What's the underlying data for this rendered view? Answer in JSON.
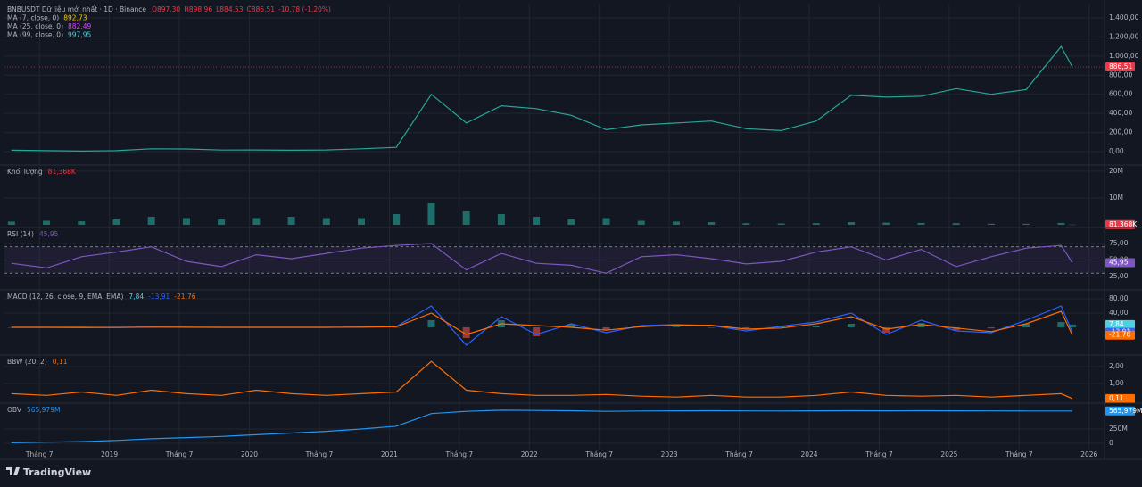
{
  "chart_data": {
    "type": "financial",
    "x": [
      2018.3,
      2018.55,
      2018.8,
      2019.05,
      2019.3,
      2019.55,
      2019.8,
      2020.05,
      2020.3,
      2020.55,
      2020.8,
      2021.05,
      2021.3,
      2021.55,
      2021.8,
      2022.05,
      2022.3,
      2022.55,
      2022.8,
      2023.05,
      2023.3,
      2023.55,
      2023.8,
      2024.05,
      2024.3,
      2024.55,
      2024.8,
      2025.05,
      2025.3,
      2025.55,
      2025.8,
      2025.88
    ],
    "xlim": [
      2018.25,
      2026.11
    ],
    "xticks": [
      {
        "value": 2018.5,
        "label": "Tháng 7"
      },
      2019,
      {
        "value": 2019.5,
        "label": "Tháng 7"
      },
      2020,
      {
        "value": 2020.5,
        "label": "Tháng 7"
      },
      2021,
      {
        "value": 2021.5,
        "label": "Tháng 7"
      },
      2022,
      {
        "value": 2022.5,
        "label": "Tháng 7"
      },
      2023,
      {
        "value": 2023.5,
        "label": "Tháng 7"
      },
      2024,
      {
        "value": 2024.5,
        "label": "Tháng 7"
      },
      2025,
      {
        "value": 2025.5,
        "label": "Tháng 7"
      },
      2026
    ],
    "grid": true,
    "brand": "TradingView",
    "panes": [
      {
        "type": "line",
        "title": "BNBUSDT Dữ liệu mới nhất · 1D · Binance",
        "ohlc": [
          "O897,30",
          "H898,96",
          "L884,53",
          "C886,51",
          "-10,78 (-1,20%)"
        ],
        "ohlc_color": "#f23645",
        "legend": [
          {
            "name": "MA (7, close, 0)",
            "value": "892,73",
            "color": "#f7c600"
          },
          {
            "name": "MA (25, close, 0)",
            "value": "882,49",
            "color": "#e040fb"
          },
          {
            "name": "MA (99, close, 0)",
            "value": "997,95",
            "color": "#4dd0e1"
          }
        ],
        "price_line": true,
        "series": [
          {
            "color": "#26a69a",
            "last_color": "#f23645",
            "last": {
              "value": 886.51,
              "label": "886,51"
            },
            "values": [
              15,
              10,
              6,
              10,
              30,
              28,
              17,
              18,
              15,
              18,
              30,
              45,
              600,
              300,
              480,
              450,
              380,
              230,
              280,
              300,
              320,
              240,
              220,
              320,
              590,
              570,
              580,
              660,
              600,
              650,
              1100,
              886.51
            ]
          }
        ],
        "ylim": [
          -140,
          1540
        ],
        "yticks": [
          {
            "value": 0,
            "label": "0,00"
          },
          {
            "value": 200,
            "label": "200,00"
          },
          {
            "value": 400,
            "label": "400,00"
          },
          {
            "value": 600,
            "label": "600,00"
          },
          {
            "value": 800,
            "label": "800,00"
          },
          {
            "value": 1000,
            "label": "1.000,00"
          },
          {
            "value": 1200,
            "label": "1.200,00"
          },
          {
            "value": 1400,
            "label": "1.400,00"
          }
        ]
      },
      {
        "type": "bar",
        "title": "Khối lượng",
        "series": [
          {
            "color": "#26a69a",
            "last_color": "#f23645",
            "last": {
              "value": 81368,
              "label": "81,368K"
            },
            "values": [
              1200000,
              1500000,
              1300000,
              2000000,
              3000000,
              2500000,
              2000000,
              2500000,
              3000000,
              2500000,
              2500000,
              4000000,
              8000000,
              5000000,
              4000000,
              3000000,
              2000000,
              2500000,
              1500000,
              1200000,
              1000000,
              600000,
              500000,
              600000,
              1000000,
              800000,
              700000,
              600000,
              400000,
              400000,
              700000,
              81368
            ]
          }
        ],
        "ylim": [
          -1000000,
          22300000
        ],
        "yticks": [
          {
            "value": 10000000,
            "label": "10M"
          },
          {
            "value": 20000000,
            "label": "20M"
          }
        ]
      },
      {
        "type": "line",
        "title": "RSI (14)",
        "band": [
          30,
          70
        ],
        "series": [
          {
            "color": "#7e57c2",
            "last": {
              "value": 45.95,
              "label": "45,95"
            },
            "values": [
              45,
              38,
              55,
              62,
              70,
              48,
              40,
              58,
              52,
              60,
              68,
              72,
              75,
              35,
              60,
              45,
              42,
              30,
              55,
              58,
              52,
              44,
              48,
              62,
              70,
              50,
              66,
              40,
              55,
              68,
              72,
              45.95
            ]
          }
        ],
        "ylim": [
          4.7,
          99.3
        ],
        "yticks": [
          {
            "value": 25,
            "label": "25,00"
          },
          {
            "value": 50,
            "label": "50,00"
          },
          {
            "value": 75,
            "label": "75,00"
          }
        ]
      },
      {
        "type": "line",
        "title": "MACD (12, 26, close, 9, EMA, EMA)",
        "series": [
          {
            "type": "bar",
            "color": "#26a69a",
            "neg_color": "#ef5350",
            "last_color": "#4dd0e1",
            "last": {
              "value": 7.84,
              "label": "7,84"
            },
            "values": [
              0,
              0,
              -1,
              0.5,
              0.5,
              -0.5,
              0,
              0,
              0,
              0,
              0.5,
              0.5,
              20,
              -30,
              20,
              -25,
              10,
              -7,
              3,
              2,
              -1,
              -5,
              5,
              5,
              10,
              -15,
              12,
              -8,
              -3,
              10,
              15,
              7.84
            ]
          },
          {
            "color": "#2962ff",
            "last": {
              "value": -13.91,
              "label": "-13,91"
            },
            "values": [
              0,
              0,
              -1,
              0,
              1,
              0,
              0,
              0,
              0,
              0,
              1,
              2,
              60,
              -50,
              30,
              -20,
              10,
              -15,
              5,
              8,
              5,
              -10,
              3,
              15,
              40,
              -20,
              20,
              -10,
              -15,
              20,
              60,
              -13.91
            ]
          },
          {
            "color": "#ff6d00",
            "last": {
              "value": -21.76,
              "label": "-21,76"
            },
            "values": [
              0,
              0,
              0,
              -0.5,
              0.5,
              0.5,
              0,
              0,
              0,
              0,
              0.5,
              1.5,
              40,
              -20,
              10,
              5,
              0,
              -8,
              2,
              6,
              6,
              -5,
              -2,
              10,
              30,
              -5,
              8,
              -2,
              -12,
              10,
              45,
              -21.76
            ]
          }
        ],
        "ylim": [
          -77.5,
          105
        ],
        "yticks": [
          {
            "value": 40,
            "label": "40,00"
          },
          {
            "value": 80,
            "label": "80,00"
          }
        ]
      },
      {
        "type": "line",
        "title": "BBW (20, 2)",
        "series": [
          {
            "color": "#ff6d00",
            "last": {
              "value": 0.11,
              "label": "0,11"
            },
            "values": [
              0.4,
              0.3,
              0.5,
              0.3,
              0.6,
              0.4,
              0.3,
              0.6,
              0.4,
              0.3,
              0.4,
              0.5,
              2.3,
              0.6,
              0.4,
              0.3,
              0.3,
              0.35,
              0.25,
              0.2,
              0.3,
              0.2,
              0.2,
              0.3,
              0.5,
              0.3,
              0.25,
              0.3,
              0.2,
              0.3,
              0.4,
              0.11
            ]
          }
        ],
        "ylim": [
          -0.16,
          2.68
        ],
        "yticks": [
          {
            "value": 1,
            "label": "1,00"
          },
          {
            "value": 2,
            "label": "2,00"
          }
        ]
      },
      {
        "type": "line",
        "title": "OBV",
        "series": [
          {
            "color": "#2196f3",
            "last": {
              "value": 565979000,
              "label": "565,979M"
            },
            "values": [
              10000000,
              20000000,
              30000000,
              50000000,
              80000000,
              100000000,
              120000000,
              150000000,
              180000000,
              210000000,
              250000000,
              300000000,
              520000000,
              560000000,
              580000000,
              575000000,
              570000000,
              560000000,
              565000000,
              568000000,
              570000000,
              567000000,
              566000000,
              568000000,
              570000000,
              569000000,
              570000000,
              568000000,
              567000000,
              566000000,
              566000000,
              565979000
            ]
          }
        ],
        "ylim": [
          -125000000,
          703000000
        ],
        "yticks": [
          0,
          {
            "value": 250000000,
            "label": "250M"
          }
        ]
      }
    ]
  }
}
